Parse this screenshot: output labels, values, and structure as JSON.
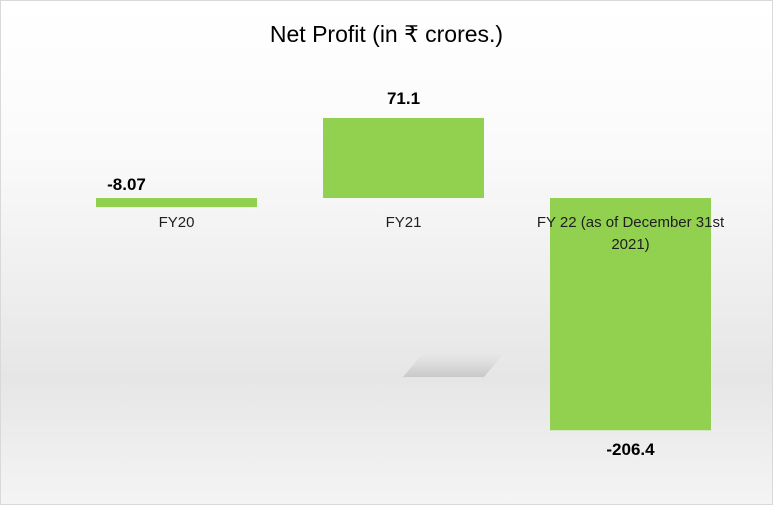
{
  "chart_data": {
    "type": "bar",
    "title": "Net Profit (in ₹ crores.)",
    "categories": [
      "FY20",
      "FY21",
      "FY 22 (as of December 31st 2021)"
    ],
    "category_lines": [
      [
        "FY20"
      ],
      [
        "FY21"
      ],
      [
        "FY 22 (as of December 31st",
        "2021)"
      ]
    ],
    "values": [
      -8.07,
      71.1,
      -206.4
    ],
    "data_labels": [
      "-8.07",
      "71.1",
      "-206.4"
    ],
    "bar_color": "#92d050",
    "grid": false,
    "legend": "none"
  }
}
